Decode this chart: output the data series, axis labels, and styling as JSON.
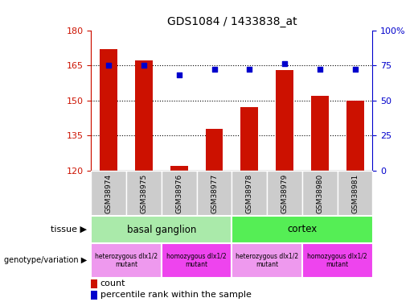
{
  "title": "GDS1084 / 1433838_at",
  "samples": [
    "GSM38974",
    "GSM38975",
    "GSM38976",
    "GSM38977",
    "GSM38978",
    "GSM38979",
    "GSM38980",
    "GSM38981"
  ],
  "counts": [
    172,
    167,
    122,
    138,
    147,
    163,
    152,
    150
  ],
  "percentiles": [
    75,
    75,
    68,
    72,
    72,
    76,
    72,
    72
  ],
  "ylim_left": [
    120,
    180
  ],
  "ylim_right": [
    0,
    100
  ],
  "yticks_left": [
    120,
    135,
    150,
    165,
    180
  ],
  "yticks_right": [
    0,
    25,
    50,
    75,
    100
  ],
  "ytick_right_labels": [
    "0",
    "25",
    "50",
    "75",
    "100%"
  ],
  "bar_color": "#cc1100",
  "dot_color": "#0000cc",
  "tissue_groups": [
    {
      "label": "basal ganglion",
      "start": 0,
      "end": 4,
      "color": "#aaeaaa"
    },
    {
      "label": "cortex",
      "start": 4,
      "end": 8,
      "color": "#55ee55"
    }
  ],
  "genotype_groups": [
    {
      "label": "heterozygous dlx1/2\nmutant",
      "start": 0,
      "end": 2,
      "color": "#ee99ee"
    },
    {
      "label": "homozygous dlx1/2\nmutant",
      "start": 2,
      "end": 4,
      "color": "#ee44ee"
    },
    {
      "label": "heterozygous dlx1/2\nmutant",
      "start": 4,
      "end": 6,
      "color": "#ee99ee"
    },
    {
      "label": "homozygous dlx1/2\nmutant",
      "start": 6,
      "end": 8,
      "color": "#ee44ee"
    }
  ],
  "legend_count_label": "count",
  "legend_percentile_label": "percentile rank within the sample",
  "tissue_label": "tissue",
  "genotype_label": "genotype/variation",
  "sample_bg_color": "#cccccc",
  "grid_color": "black",
  "tick_color_left": "#cc1100",
  "tick_color_right": "#0000cc",
  "bar_width": 0.5
}
